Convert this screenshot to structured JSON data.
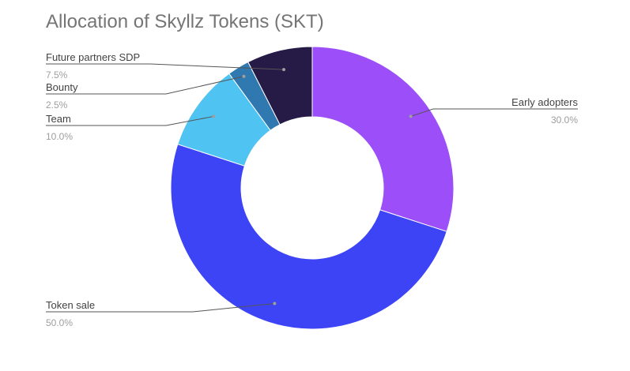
{
  "chart_data": {
    "type": "pie",
    "donut": true,
    "title": "Allocation of Skyllz Tokens (SKT)",
    "slices": [
      {
        "label": "Early adopters",
        "value": 30.0,
        "percent_label": "30.0%",
        "color": "#9c4ef8"
      },
      {
        "label": "Token sale",
        "value": 50.0,
        "percent_label": "50.0%",
        "color": "#3d44f5"
      },
      {
        "label": "Team",
        "value": 10.0,
        "percent_label": "10.0%",
        "color": "#4fc3f2"
      },
      {
        "label": "Bounty",
        "value": 2.5,
        "percent_label": "2.5%",
        "color": "#2f78b0"
      },
      {
        "label": "Future partners SDP",
        "value": 7.5,
        "percent_label": "7.5%",
        "color": "#261a46"
      }
    ],
    "start_angle_deg": 0,
    "direction": "clockwise",
    "label_color": "#424242",
    "percent_color": "#9e9e9e",
    "leader_color": "#555555"
  }
}
